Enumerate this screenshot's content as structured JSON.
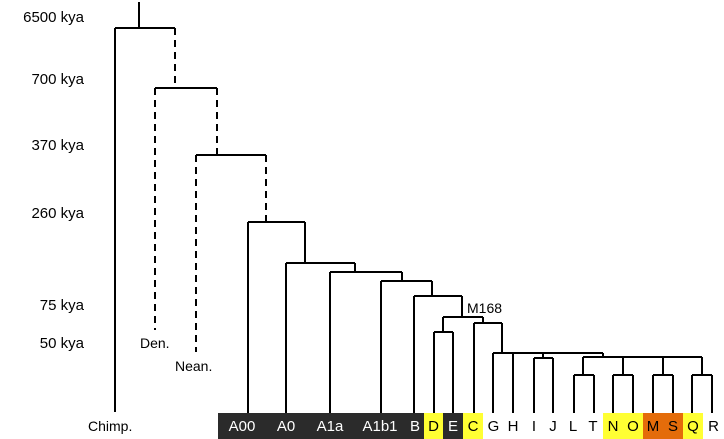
{
  "time_axis": [
    {
      "label": "6500 kya"
    },
    {
      "label": "700 kya"
    },
    {
      "label": "370 kya"
    },
    {
      "label": "260 kya"
    },
    {
      "label": "75 kya"
    },
    {
      "label": "50 kya"
    }
  ],
  "species": {
    "chimp": "Chimp.",
    "denisovan": "Den.",
    "neanderthal": "Nean."
  },
  "mutation": "M168",
  "haplogroups": [
    {
      "label": "A00",
      "bg": "#2b2b2b",
      "fg": "#ffffff"
    },
    {
      "label": "A0",
      "bg": "#2b2b2b",
      "fg": "#ffffff"
    },
    {
      "label": "A1a",
      "bg": "#2b2b2b",
      "fg": "#ffffff"
    },
    {
      "label": "A1b1",
      "bg": "#2b2b2b",
      "fg": "#ffffff"
    },
    {
      "label": "B",
      "bg": "#2b2b2b",
      "fg": "#ffffff"
    },
    {
      "label": "D",
      "bg": "#ffff33",
      "fg": "#000000"
    },
    {
      "label": "E",
      "bg": "#2b2b2b",
      "fg": "#ffffff"
    },
    {
      "label": "C",
      "bg": "#ffff33",
      "fg": "#000000"
    },
    {
      "label": "G",
      "bg": "#ffffff",
      "fg": "#000000"
    },
    {
      "label": "H",
      "bg": "#ffffff",
      "fg": "#000000"
    },
    {
      "label": "I",
      "bg": "#ffffff",
      "fg": "#000000"
    },
    {
      "label": "J",
      "bg": "#ffffff",
      "fg": "#000000"
    },
    {
      "label": "L",
      "bg": "#ffffff",
      "fg": "#000000"
    },
    {
      "label": "T",
      "bg": "#ffffff",
      "fg": "#000000"
    },
    {
      "label": "N",
      "bg": "#ffff33",
      "fg": "#000000"
    },
    {
      "label": "O",
      "bg": "#ffff33",
      "fg": "#000000"
    },
    {
      "label": "M",
      "bg": "#e46c0a",
      "fg": "#000000"
    },
    {
      "label": "S",
      "bg": "#e46c0a",
      "fg": "#000000"
    },
    {
      "label": "Q",
      "bg": "#ffff33",
      "fg": "#000000"
    },
    {
      "label": "R",
      "bg": "#ffffff",
      "fg": "#000000"
    }
  ],
  "colors": {
    "line": "#000000",
    "dark": "#2b2b2b",
    "yellow": "#ffff33",
    "orange": "#e46c0a"
  }
}
